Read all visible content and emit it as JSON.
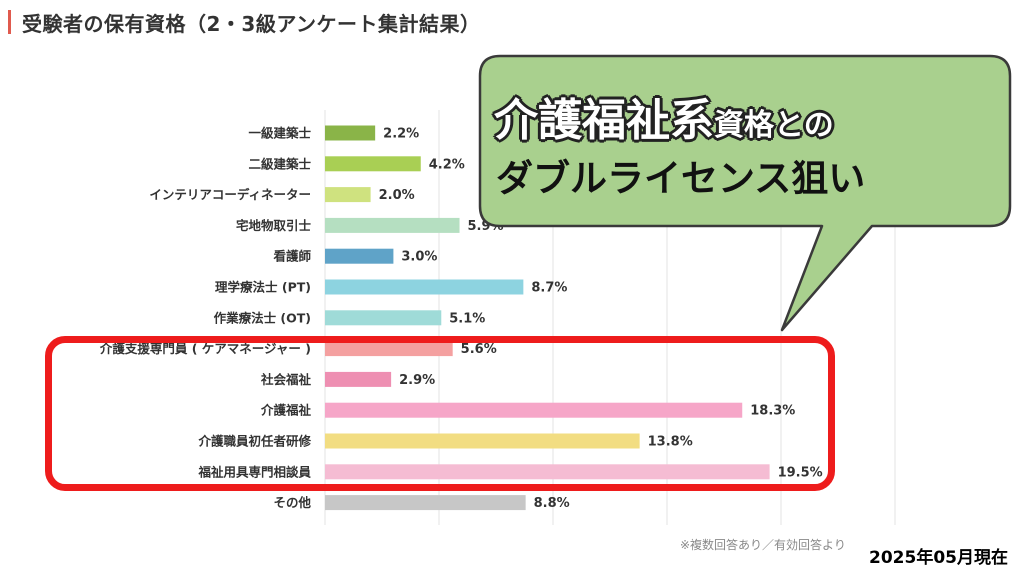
{
  "page": {
    "title": "受験者の保有資格（2・3級アンケート集計結果）",
    "footnote": "※複数回答あり／有効回答より",
    "date": "2025年05月現在"
  },
  "callout": {
    "line1_big": "介護福祉系",
    "line1_small": "資格との",
    "line2": "ダブルライセンス狙い",
    "fill": "#a9d08e",
    "border": "#3a3a3a"
  },
  "highlight": {
    "color": "#ee1c1c",
    "categories": [
      "介護支援専門員 ( ケアマネージャー )",
      "社会福祉",
      "介護福祉",
      "介護職員初任者研修",
      "福祉用具専門相談員"
    ]
  },
  "chart_data": {
    "type": "bar",
    "orientation": "horizontal",
    "categories": [
      "一級建築士",
      "二級建築士",
      "インテリアコーディネーター",
      "宅地物取引士",
      "看護師",
      "理学療法士 (PT)",
      "作業療法士 (OT)",
      "介護支援専門員 ( ケアマネージャー )",
      "社会福祉",
      "介護福祉",
      "介護職員初任者研修",
      "福祉用具専門相談員",
      "その他"
    ],
    "values": [
      2.2,
      4.2,
      2.0,
      5.9,
      3.0,
      8.7,
      5.1,
      5.6,
      2.9,
      18.3,
      13.8,
      19.5,
      8.8
    ],
    "value_labels": [
      "2.2%",
      "4.2%",
      "2.0%",
      "5.9%",
      "3.0%",
      "8.7%",
      "5.1%",
      "5.6%",
      "2.9%",
      "18.3%",
      "13.8%",
      "19.5%",
      "8.8%"
    ],
    "colors": [
      "#8ab448",
      "#a9cf54",
      "#cfe27f",
      "#b5dfc1",
      "#5fa3c8",
      "#8dd3e0",
      "#9fdbd8",
      "#f4a0a0",
      "#ee8fb2",
      "#f6a6c8",
      "#f2dd82",
      "#f5bcd3",
      "#c7c7c7"
    ],
    "xlim": [
      0,
      25
    ],
    "grid": true
  }
}
